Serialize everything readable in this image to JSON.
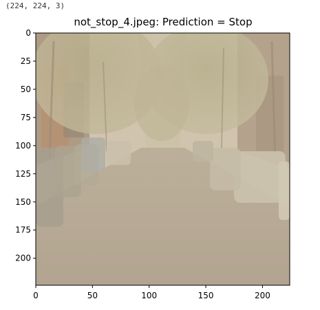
{
  "output": {
    "shape_text": "(224, 224, 3)"
  },
  "figure": {
    "title": "not_stop_4.jpeg: Prediction = Stop",
    "x_ticks": [
      "0",
      "50",
      "100",
      "150",
      "200"
    ],
    "y_ticks": [
      "0",
      "25",
      "50",
      "75",
      "100",
      "125",
      "150",
      "175",
      "200"
    ],
    "xlim": [
      0,
      224
    ],
    "ylim": [
      224,
      0
    ],
    "image_description_colors": {
      "sky": "#d8cdb8",
      "road": "#a89c8a",
      "trees": "#9c9a6e",
      "buildings": "#8a7560"
    }
  }
}
